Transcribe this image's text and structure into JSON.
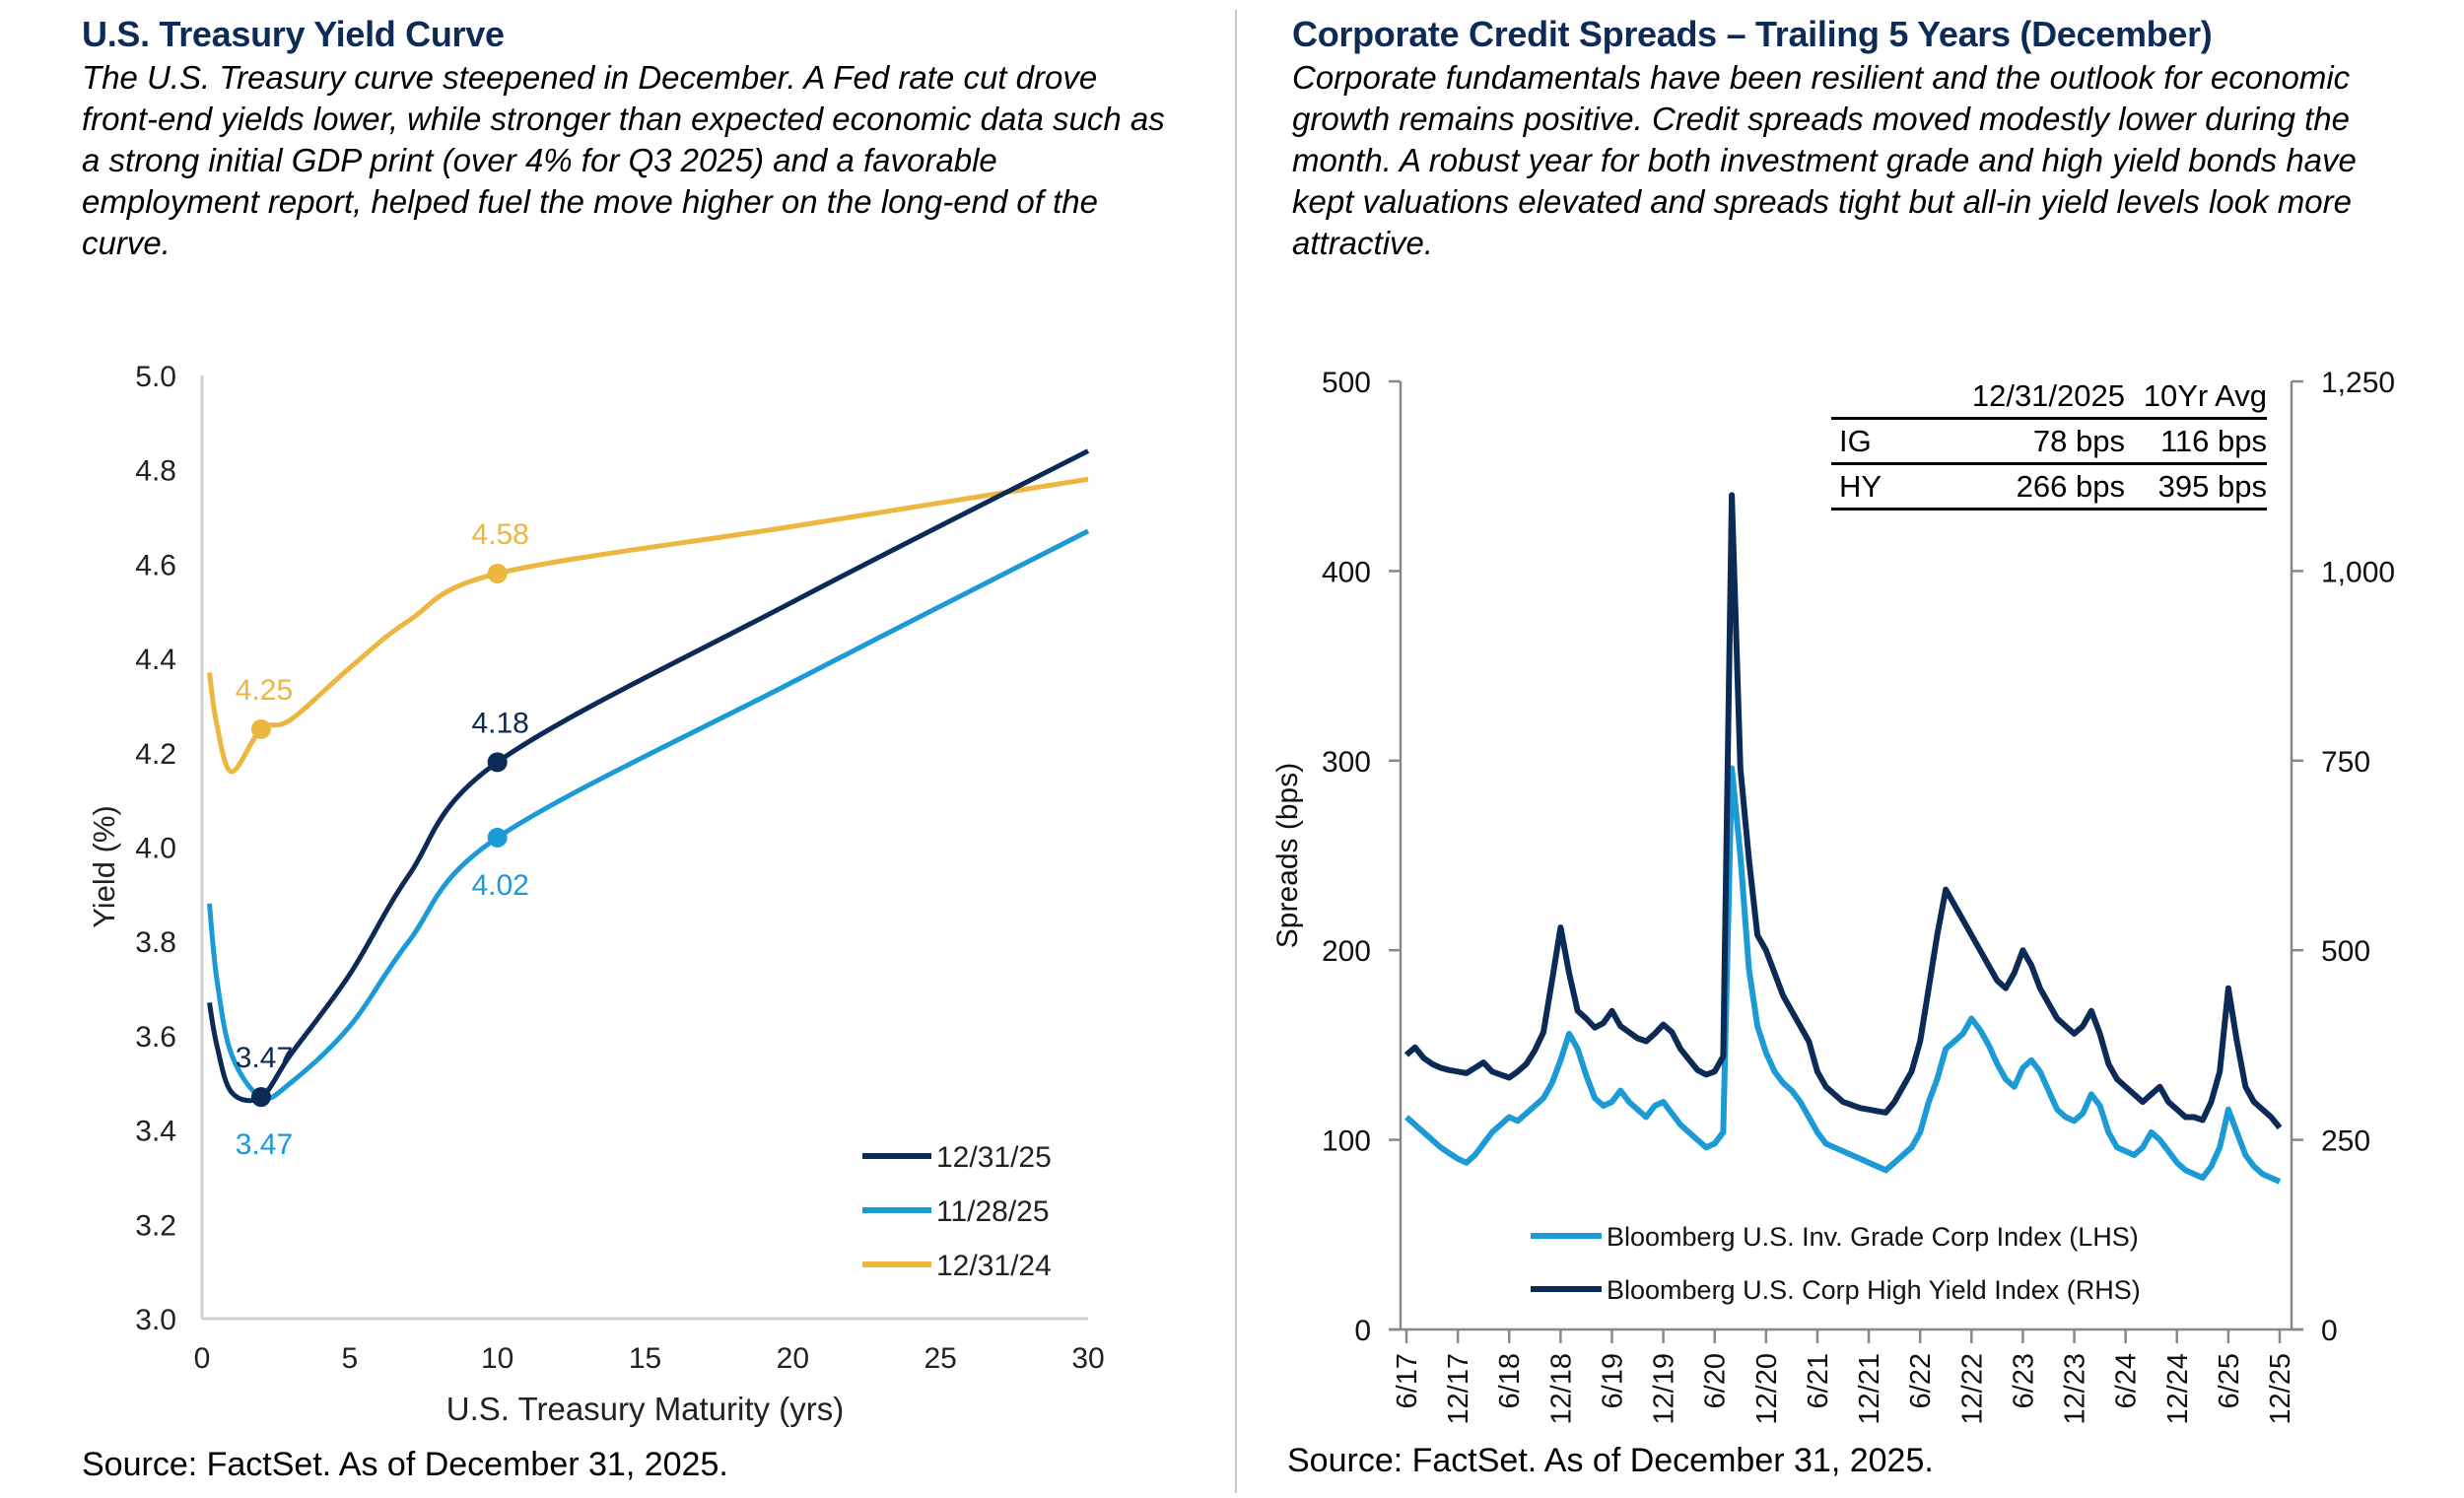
{
  "left_panel": {
    "title": "U.S. Treasury Yield Curve",
    "description": "The U.S. Treasury curve steepened in December. A Fed rate cut drove front-end yields lower, while stronger than expected economic data such as a strong initial GDP print (over 4% for Q3 2025) and a favorable employment report, helped fuel the move higher on the long-end of the curve.",
    "source": "Source: FactSet. As of December 31, 2025."
  },
  "right_panel": {
    "title": "Corporate Credit Spreads – Trailing 5 Years (December)",
    "description": "Corporate fundamentals have been resilient and the outlook for economic growth remains positive. Credit spreads moved modestly lower during the month. A robust year for both investment grade and high yield bonds have kept valuations elevated and spreads tight but all-in yield levels look more attractive.",
    "source": "Source: FactSet. As of December 31, 2025.",
    "table": {
      "headers": [
        "",
        "12/31/2025",
        "10Yr Avg"
      ],
      "rows": [
        [
          "IG",
          "78 bps",
          "116 bps"
        ],
        [
          "HY",
          "266 bps",
          "395 bps"
        ]
      ]
    }
  },
  "chart_data": [
    {
      "type": "line",
      "title": "U.S. Treasury Yield Curve",
      "xlabel": "U.S. Treasury  Maturity (yrs)",
      "ylabel": "Yield (%)",
      "xlim": [
        0,
        30
      ],
      "ylim": [
        3.0,
        5.0
      ],
      "xticks": [
        0,
        5,
        10,
        15,
        20,
        25,
        30
      ],
      "yticks": [
        "3.0",
        "3.2",
        "3.4",
        "3.6",
        "3.8",
        "4.0",
        "4.2",
        "4.4",
        "4.6",
        "4.8",
        "5.0"
      ],
      "grid": false,
      "legend_position": "bottom-right",
      "series": [
        {
          "name": "12/31/25",
          "color": "#0c2a56",
          "x": [
            0.25,
            0.5,
            1,
            2,
            3,
            5,
            7,
            10,
            20,
            30
          ],
          "y": [
            3.67,
            3.58,
            3.48,
            3.47,
            3.56,
            3.73,
            3.94,
            4.18,
            4.52,
            4.84
          ],
          "labels": [
            {
              "x": 2,
              "y": 3.47,
              "text": "3.47",
              "pos": "above"
            },
            {
              "x": 10,
              "y": 4.18,
              "text": "4.18",
              "pos": "above"
            }
          ]
        },
        {
          "name": "11/28/25",
          "color": "#1b9ad6",
          "x": [
            0.25,
            0.5,
            1,
            2,
            3,
            5,
            7,
            10,
            20,
            30
          ],
          "y": [
            3.88,
            3.72,
            3.56,
            3.47,
            3.5,
            3.62,
            3.8,
            4.02,
            4.35,
            4.67
          ],
          "labels": [
            {
              "x": 2,
              "y": 3.47,
              "text": "3.47",
              "pos": "below"
            },
            {
              "x": 10,
              "y": 4.02,
              "text": "4.02",
              "pos": "below"
            }
          ]
        },
        {
          "name": "12/31/24",
          "color": "#ecb63f",
          "x": [
            0.25,
            0.5,
            1,
            2,
            3,
            5,
            7,
            10,
            20,
            30
          ],
          "y": [
            4.37,
            4.26,
            4.16,
            4.25,
            4.27,
            4.38,
            4.48,
            4.58,
            4.68,
            4.78
          ],
          "labels": [
            {
              "x": 2,
              "y": 4.25,
              "text": "4.25",
              "pos": "above"
            },
            {
              "x": 10,
              "y": 4.58,
              "text": "4.58",
              "pos": "above"
            }
          ]
        }
      ]
    },
    {
      "type": "line",
      "title": "Corporate Credit Spreads – Trailing 5 Years (December)",
      "xlabel": "",
      "ylabel": "Spreads (bps)",
      "ylabel_right": "",
      "ylim": [
        0,
        500
      ],
      "ylim_right": [
        0,
        1250
      ],
      "yticks": [
        "0",
        "100",
        "200",
        "300",
        "400",
        "500"
      ],
      "yticks_right": [
        "0",
        "250",
        "500",
        "750",
        "1,000",
        "1,250"
      ],
      "xtick_labels": [
        "6/17",
        "12/17",
        "6/18",
        "12/18",
        "6/19",
        "12/19",
        "6/20",
        "12/20",
        "6/21",
        "12/21",
        "6/22",
        "12/22",
        "6/23",
        "12/23",
        "6/24",
        "12/24",
        "6/25",
        "12/25"
      ],
      "x_start": "6/17",
      "x_end": "12/25",
      "frequency": "monthly",
      "grid": false,
      "legend_position": "bottom-center",
      "series": [
        {
          "name": "Bloomberg U.S. Inv. Grade Corp Index (LHS)",
          "axis": "left",
          "color": "#1b9ad6",
          "values": [
            112,
            108,
            104,
            100,
            96,
            93,
            90,
            88,
            92,
            98,
            104,
            108,
            112,
            110,
            114,
            118,
            122,
            130,
            142,
            156,
            148,
            134,
            122,
            118,
            120,
            126,
            120,
            116,
            112,
            118,
            120,
            114,
            108,
            104,
            100,
            96,
            98,
            104,
            296,
            250,
            190,
            160,
            146,
            136,
            130,
            126,
            120,
            112,
            104,
            98,
            96,
            94,
            92,
            90,
            88,
            86,
            84,
            88,
            92,
            96,
            104,
            120,
            132,
            148,
            152,
            156,
            164,
            158,
            150,
            140,
            132,
            128,
            138,
            142,
            136,
            126,
            116,
            112,
            110,
            114,
            124,
            118,
            104,
            96,
            94,
            92,
            96,
            104,
            100,
            94,
            88,
            84,
            82,
            80,
            86,
            96,
            116,
            104,
            92,
            86,
            82,
            80,
            78
          ]
        },
        {
          "name": "Bloomberg U.S. Corp High Yield Index (RHS)",
          "axis": "right",
          "color": "#0c2a56",
          "values": [
            362,
            372,
            358,
            350,
            345,
            342,
            340,
            338,
            345,
            352,
            340,
            336,
            332,
            340,
            350,
            368,
            392,
            460,
            530,
            470,
            420,
            410,
            398,
            404,
            420,
            400,
            392,
            384,
            380,
            390,
            402,
            392,
            370,
            356,
            342,
            336,
            340,
            360,
            1100,
            740,
            620,
            520,
            500,
            470,
            440,
            420,
            400,
            380,
            340,
            320,
            310,
            300,
            296,
            292,
            290,
            288,
            286,
            300,
            320,
            340,
            380,
            450,
            520,
            580,
            560,
            540,
            520,
            500,
            480,
            460,
            450,
            470,
            500,
            480,
            450,
            430,
            410,
            400,
            390,
            400,
            420,
            390,
            350,
            330,
            320,
            310,
            300,
            310,
            320,
            300,
            290,
            280,
            280,
            276,
            300,
            340,
            450,
            380,
            320,
            300,
            290,
            280,
            266
          ]
        }
      ]
    }
  ]
}
